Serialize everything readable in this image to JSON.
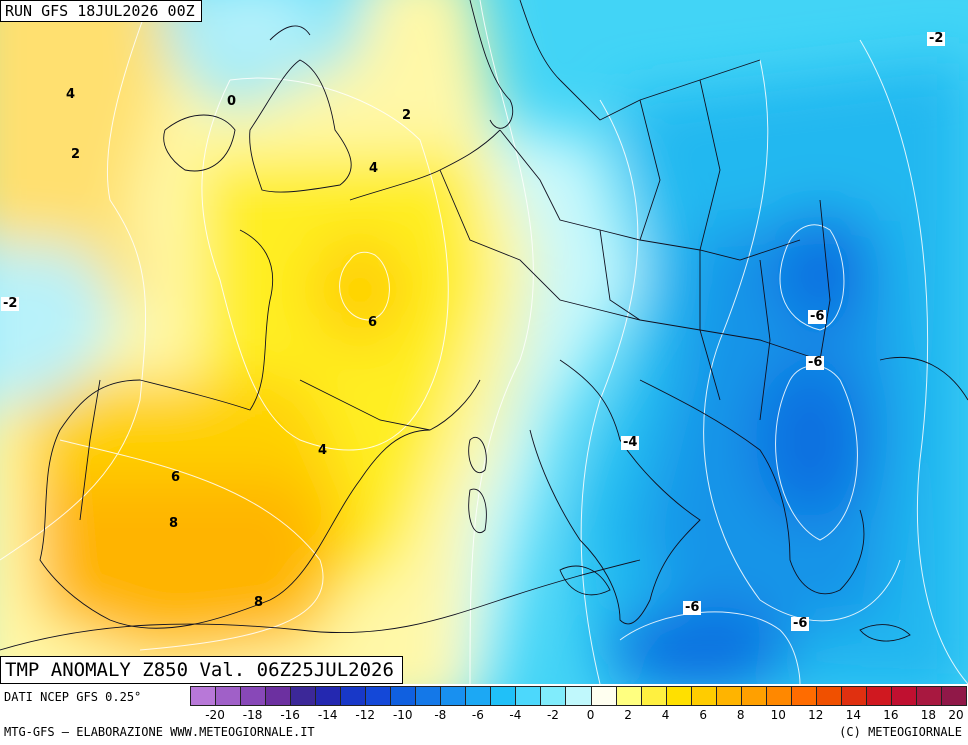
{
  "header": {
    "run": "RUN GFS 18JUL2026 00Z"
  },
  "map_title": "TMP ANOMALY Z850 Val. 06Z25JUL2026",
  "footer": {
    "source": "DATI NCEP GFS 0.25°",
    "elaboration": "MTG-GFS – ELABORAZIONE WWW.METEOGIORNALE.IT",
    "copyright": "(C) METEOGIORNALE"
  },
  "legend": {
    "colors": [
      "#b878d8",
      "#a060c8",
      "#8848b8",
      "#6c30a0",
      "#3c2898",
      "#2428b0",
      "#1838c8",
      "#1448d8",
      "#1060e0",
      "#1478e8",
      "#1890f0",
      "#1ca8f4",
      "#20c0f8",
      "#4cd8fc",
      "#80ecfc",
      "#c0f8fc",
      "#fffff0",
      "#ffff80",
      "#fff040",
      "#ffe000",
      "#ffcc00",
      "#ffb400",
      "#ffa000",
      "#ff8800",
      "#ff6c00",
      "#f05000",
      "#e03010",
      "#d01820",
      "#c01030",
      "#a81840",
      "#901848"
    ],
    "ticks": [
      "-20",
      "-18",
      "-16",
      "-14",
      "-12",
      "-10",
      "-8",
      "-6",
      "-4",
      "-2",
      "0",
      "2",
      "4",
      "6",
      "8",
      "10",
      "12",
      "14",
      "16",
      "18",
      "20"
    ]
  },
  "contour_labels": [
    {
      "text": "4",
      "boxed": false
    },
    {
      "text": "2",
      "boxed": false
    },
    {
      "text": "0",
      "boxed": false
    },
    {
      "text": "2",
      "boxed": false
    },
    {
      "text": "4",
      "boxed": false
    },
    {
      "text": "6",
      "boxed": false
    },
    {
      "text": "-2",
      "boxed": true
    },
    {
      "text": "4",
      "boxed": false
    },
    {
      "text": "6",
      "boxed": false
    },
    {
      "text": "8",
      "boxed": false
    },
    {
      "text": "8",
      "boxed": false
    },
    {
      "text": "-2",
      "boxed": true
    },
    {
      "text": "-6",
      "boxed": true
    },
    {
      "text": "-6",
      "boxed": true
    },
    {
      "text": "-4",
      "boxed": true
    },
    {
      "text": "-6",
      "boxed": true
    },
    {
      "text": "-6",
      "boxed": true
    }
  ]
}
